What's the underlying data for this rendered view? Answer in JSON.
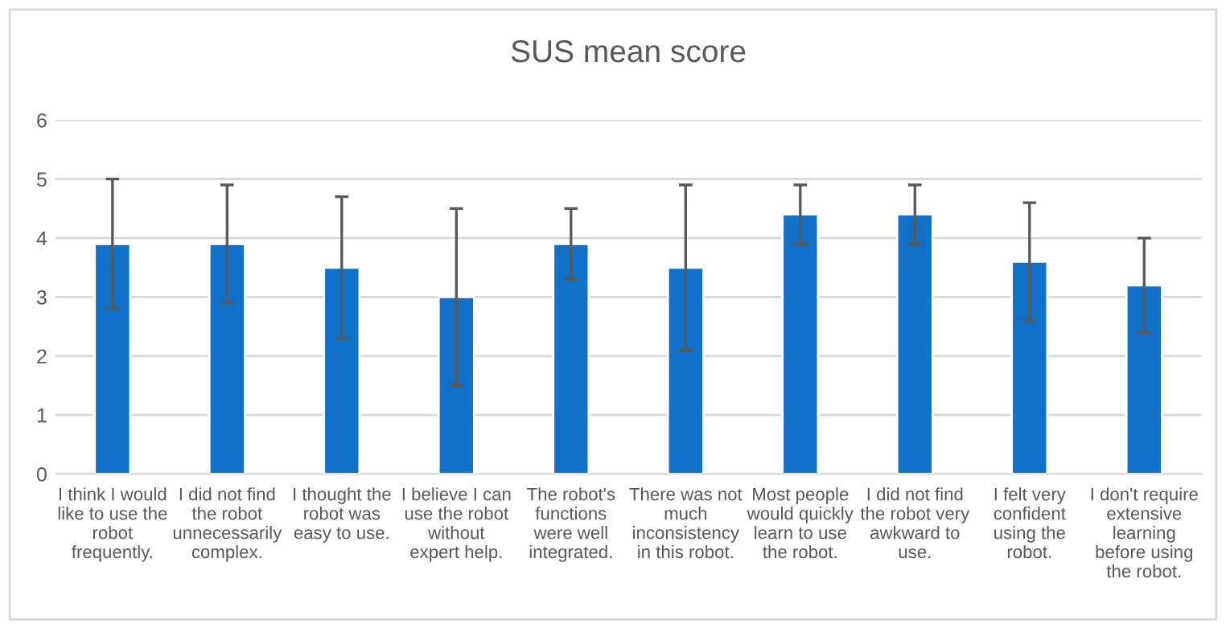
{
  "chart_data": {
    "type": "bar",
    "title": "SUS mean score",
    "categories": [
      "I think I would\nlike to use the\nrobot\nfrequently.",
      "I did not find\nthe robot\nunnecessarily\ncomplex.",
      "I thought the\nrobot was\neasy to use.",
      "I believe I can\nuse the robot\nwithout\nexpert help.",
      "The robot's\nfunctions\nwere well\nintegrated.",
      "There was not\nmuch\ninconsistency\nin this robot.",
      "Most people\nwould quickly\nlearn to use\nthe robot.",
      "I did not find\nthe robot very\nawkward to\nuse.",
      "I felt very\nconfident\nusing the\nrobot.",
      "I don't require\nextensive\nlearning\nbefore using\nthe robot."
    ],
    "values": [
      3.9,
      3.9,
      3.5,
      3.0,
      3.9,
      3.5,
      4.4,
      4.4,
      3.6,
      3.2
    ],
    "errors": [
      1.1,
      1.0,
      1.2,
      1.5,
      0.6,
      1.4,
      0.5,
      0.5,
      1.0,
      0.8
    ],
    "color": "#1170c8",
    "ylim": [
      0,
      6
    ],
    "yticks": [
      0,
      1,
      2,
      3,
      4,
      5,
      6
    ],
    "grid": "y",
    "legend": false
  }
}
